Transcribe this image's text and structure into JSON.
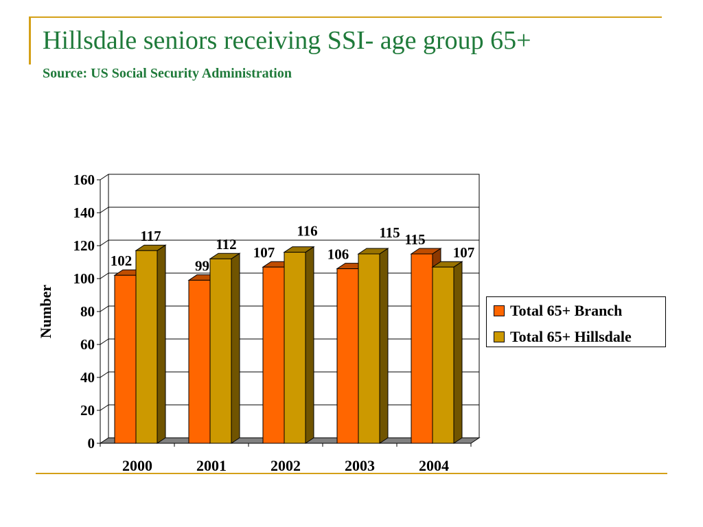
{
  "slide": {
    "title": "Hillsdale seniors receiving SSI- age group 65+",
    "subtitle": "Source: US Social Security Administration"
  },
  "colors": {
    "accent": "#d4a017",
    "title": "#1f7a3a",
    "branch": "#ff6600",
    "hillsdale": "#cc9900"
  },
  "chart_data": {
    "type": "bar",
    "categories": [
      "2000",
      "2001",
      "2002",
      "2003",
      "2004"
    ],
    "series": [
      {
        "name": "Total 65+ Branch",
        "values": [
          102,
          99,
          107,
          106,
          115
        ]
      },
      {
        "name": "Total 65+ Hillsdale",
        "values": [
          117,
          112,
          116,
          115,
          107
        ]
      }
    ],
    "title": "",
    "xlabel": "",
    "ylabel": "Number",
    "ylim": [
      0,
      160
    ],
    "yticks": [
      0,
      20,
      40,
      60,
      80,
      100,
      120,
      140,
      160
    ],
    "grid": true,
    "three_d": true,
    "legend_position": "right"
  }
}
